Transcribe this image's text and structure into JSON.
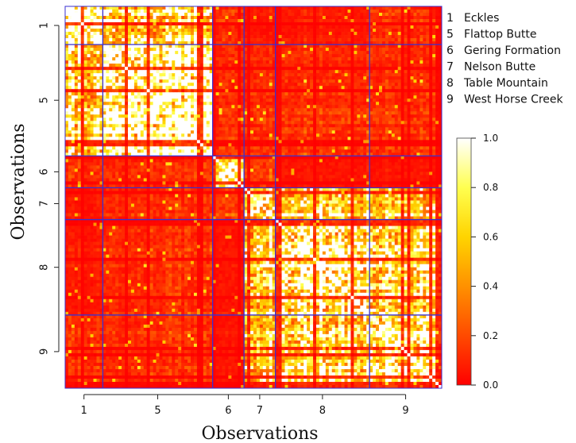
{
  "chart_data": {
    "type": "heatmap",
    "title": "",
    "xlabel": "Observations",
    "ylabel": "Observations",
    "x_tick_labels": [
      "1",
      "5",
      "6",
      "7",
      "8",
      "9"
    ],
    "y_tick_labels": [
      "1",
      "5",
      "6",
      "7",
      "8",
      "9"
    ],
    "groups": [
      {
        "id": "1",
        "name": "Eckles",
        "count": 12
      },
      {
        "id": "5",
        "name": "Flattop Butte",
        "count": 35
      },
      {
        "id": "6",
        "name": "Gering Formation",
        "count": 10
      },
      {
        "id": "7",
        "name": "Nelson Butte",
        "count": 10
      },
      {
        "id": "8",
        "name": "Table Mountain",
        "count": 30
      },
      {
        "id": "9",
        "name": "West Horse Creek",
        "count": 23
      }
    ],
    "legend_entries": [
      {
        "id": "1",
        "name": "Eckles"
      },
      {
        "id": "5",
        "name": "Flattop Butte"
      },
      {
        "id": "6",
        "name": "Gering Formation"
      },
      {
        "id": "7",
        "name": "Nelson Butte"
      },
      {
        "id": "8",
        "name": "Table Mountain"
      },
      {
        "id": "9",
        "name": "West Horse Creek"
      }
    ],
    "colorbar": {
      "min": 0.0,
      "max": 1.0,
      "ticks": [
        "0.0",
        "0.2",
        "0.4",
        "0.6",
        "0.8",
        "1.0"
      ],
      "colors": [
        "#ff0000",
        "#ff4a00",
        "#ff9100",
        "#ffd400",
        "#ffff50",
        "#ffffff"
      ]
    },
    "block_similarity": [
      [
        0.85,
        0.5,
        0.1,
        0.05,
        0.05,
        0.1
      ],
      [
        0.5,
        0.8,
        0.1,
        0.1,
        0.1,
        0.1
      ],
      [
        0.1,
        0.1,
        0.85,
        0.15,
        0.05,
        0.05
      ],
      [
        0.05,
        0.1,
        0.15,
        0.85,
        0.6,
        0.55
      ],
      [
        0.05,
        0.1,
        0.05,
        0.6,
        0.8,
        0.65
      ],
      [
        0.1,
        0.1,
        0.05,
        0.55,
        0.65,
        0.8
      ]
    ],
    "diagonal_value": 1.0,
    "divider_color": "#3a2fd0",
    "grid": false
  }
}
